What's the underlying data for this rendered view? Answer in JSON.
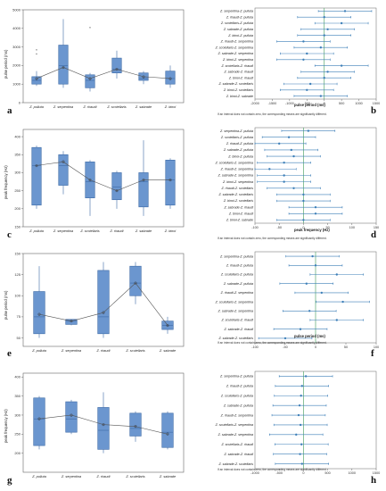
{
  "colors": {
    "box": "#6b96cf",
    "box_stroke": "#3d6aa6",
    "line": "#555555",
    "ci": "#3d7fb8",
    "zero": "#58a870",
    "axis": "#666666"
  },
  "panels": {
    "a": {
      "letter": "a",
      "ylabel": "pulse period (ms)",
      "categories": [
        "Z. pulluta",
        "Z. serpentina",
        "Z. rhaudi",
        "Z. scotellaris",
        "Z. sabrade",
        "Z. binoi"
      ],
      "ylim": [
        0,
        5000
      ],
      "yticks": [
        "0",
        "1000",
        "2000",
        "3000",
        "4000",
        "5000"
      ],
      "boxes": [
        [
          900,
          1000,
          1200,
          1400,
          1700
        ],
        [
          800,
          1000,
          2000,
          3100,
          4500
        ],
        [
          600,
          800,
          1200,
          1500,
          1600
        ],
        [
          1300,
          1600,
          1800,
          2400,
          2800
        ],
        [
          1000,
          1200,
          1300,
          1600,
          1700
        ],
        [
          800,
          1000,
          1300,
          1700,
          2000
        ]
      ],
      "means": [
        1300,
        1900,
        1300,
        1800,
        1400,
        1300
      ],
      "outliers": [
        [
          0,
          2600
        ],
        [
          0,
          2800
        ],
        [
          2,
          4000
        ]
      ]
    },
    "b": {
      "letter": "b",
      "xlabel": "pulse period (ms)",
      "note": "If an interval does not contain zero, the corresponding means are significantly different.",
      "xticks": [
        "-2000",
        "-1500",
        "-1000",
        "-500",
        "0",
        "500",
        "1000",
        "1500"
      ],
      "xlim": [
        -2000,
        1500
      ],
      "rows": [
        "Z. serpentina-Z. pulluta",
        "Z. rhaudi-Z. pulluta",
        "Z. scotellaris-Z. pulluta",
        "Z. sabrade-Z. pulluta",
        "Z. binoi-Z. pulluta",
        "Z. rhaudi-Z. serpentina",
        "Z. scotellaris-Z. serpentina",
        "Z. sabrade-Z. serpentina",
        "Z. binoi-Z. serpentina",
        "Z. scotellaris-Z. rhaudi",
        "Z. sabrade-Z. rhaudi",
        "Z. binoi-Z. rhaudi",
        "Z. sabrade-Z. scotellaris",
        "Z. binoi-Z. scotellaris",
        "Z. binoi-Z. sabrade"
      ],
      "est": [
        600,
        0,
        500,
        100,
        0,
        -600,
        -100,
        -500,
        -600,
        500,
        100,
        0,
        -400,
        -500,
        -100
      ]
    },
    "c": {
      "letter": "c",
      "ylabel": "peak frequency (Hz)",
      "categories": [
        "Z. pulluta",
        "Z. serpentina",
        "Z. scotellaris",
        "Z. rhaudi",
        "Z. sabrade",
        "Z. binoi"
      ],
      "ylim": [
        150,
        420
      ],
      "yticks": [
        "150",
        "200",
        "250",
        "300",
        "350",
        "400"
      ],
      "boxes": [
        [
          200,
          210,
          320,
          370,
          375
        ],
        [
          240,
          265,
          320,
          350,
          360
        ],
        [
          180,
          230,
          275,
          330,
          335
        ],
        [
          200,
          225,
          260,
          300,
          305
        ],
        [
          180,
          205,
          275,
          300,
          390
        ],
        [
          200,
          210,
          280,
          335,
          340
        ]
      ],
      "means": [
        320,
        330,
        280,
        250,
        280,
        280
      ],
      "outliers": []
    },
    "d": {
      "letter": "d",
      "xlabel": "peak frequency (Hz)",
      "note": "If an interval does not contain zero, the corresponding means are significantly different.",
      "xticks": [
        "-100",
        "-50",
        "0",
        "50",
        "100",
        "150"
      ],
      "xlim": [
        -100,
        150
      ],
      "rows": [
        "Z. serpentina-Z. pulluta",
        "Z. scotellaris-Z. pulluta",
        "Z. rhaudi-Z. pulluta",
        "Z. sabrade-Z. pulluta",
        "Z. binoi-Z. pulluta",
        "Z. scotellaris-Z. serpentina",
        "Z. rhaudi-Z. serpentina",
        "Z. sabrade-Z. serpentina",
        "Z. binoi-Z. serpentina",
        "Z. rhaudi-Z. scotellaris",
        "Z. sabrade-Z. scotellaris",
        "Z. binoi-Z. scotellaris",
        "Z. sabrade-Z. rhaudi",
        "Z. binoi-Z. rhaudi",
        "Z. binoi-Z. sabrade"
      ],
      "est": [
        10,
        -30,
        -50,
        -25,
        -20,
        -40,
        -70,
        -40,
        -40,
        -20,
        0,
        0,
        25,
        25,
        0
      ]
    },
    "e": {
      "letter": "e",
      "ylabel": "pulse period (ms)",
      "categories": [
        "Z. pulluta",
        "Z. serpentina",
        "Z. rhaudi",
        "Z. scutellaris",
        "Z. sabrade"
      ],
      "ylim": [
        40,
        150
      ],
      "yticks": [
        "50",
        "75",
        "100",
        "125",
        "150"
      ],
      "boxes": [
        [
          50,
          55,
          75,
          105,
          135
        ],
        [
          65,
          66,
          70,
          72,
          72
        ],
        [
          50,
          55,
          75,
          130,
          140
        ],
        [
          90,
          100,
          115,
          135,
          140
        ],
        [
          55,
          60,
          65,
          70,
          75
        ]
      ],
      "means": [
        78,
        70,
        80,
        115,
        65
      ],
      "outliers": []
    },
    "f": {
      "letter": "f",
      "xlabel": "pulse period (ms)",
      "note": "If an interval does not contain zero, the corresponding means are significantly different.",
      "xticks": [
        "-100",
        "-50",
        "0",
        "50",
        "100"
      ],
      "xlim": [
        -100,
        100
      ],
      "rows": [
        "Z. serpentina-Z. pulluta",
        "Z. rhaudi-Z. pulluta",
        "Z. scutellaris-Z. pulluta",
        "Z. sabrade-Z. pulluta",
        "Z. rhaudi-Z. serpentina",
        "Z. scutellaris-Z. serpentina",
        "Z. sabrade-Z. serpentina",
        "Z. scutellaris-Z. rhaudi",
        "Z. sabrade-Z. rhaudi",
        "Z. sabrade-Z. scutellaris"
      ],
      "est": [
        -5,
        0,
        35,
        -15,
        10,
        45,
        -10,
        35,
        -25,
        -50
      ]
    },
    "g": {
      "letter": "g",
      "ylabel": "peak frequency (Hz)",
      "categories": [
        "Z. pulluta",
        "Z. serpentina",
        "Z. rhaudi",
        "Z. scutellaris",
        "Z. sabrade"
      ],
      "ylim": [
        150,
        410
      ],
      "yticks": [
        "200",
        "250",
        "300",
        "350",
        "400"
      ],
      "boxes": [
        [
          210,
          220,
          290,
          345,
          350
        ],
        [
          250,
          255,
          290,
          335,
          340
        ],
        [
          200,
          210,
          260,
          320,
          360
        ],
        [
          230,
          245,
          265,
          305,
          310
        ],
        [
          210,
          215,
          255,
          305,
          310
        ]
      ],
      "means": [
        290,
        300,
        275,
        270,
        250
      ],
      "outliers": []
    },
    "h": {
      "letter": "h",
      "xlabel": "peak frequency (Hz)",
      "note": "If an interval does not contain zero, the corresponding means are significantly different.",
      "xticks": [
        "-1000",
        "-500",
        "0",
        "500",
        "1000",
        "1500"
      ],
      "xlim": [
        -1000,
        1500
      ],
      "rows": [
        "Z. serpentina-Z. pulluta",
        "Z. rhaudi-Z. pulluta",
        "Z. scutellaris-Z. pulluta",
        "Z. sabrade-Z. pulluta",
        "Z. rhaudi-Z. serpentina",
        "Z. scutellaris-Z. serpentina",
        "Z. sabrade-Z. serpentina",
        "Z. scutellaris-Z. rhaudi",
        "Z. sabrade-Z. rhaudi",
        "Z. sabrade-Z. scutellaris"
      ],
      "est": [
        50,
        -30,
        -50,
        -80,
        -100,
        -60,
        -150,
        -40,
        -70,
        -30
      ]
    }
  }
}
